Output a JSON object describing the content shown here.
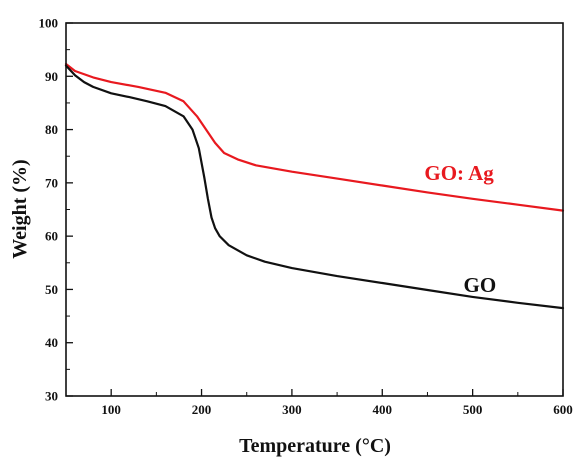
{
  "chart_data": {
    "type": "line",
    "title": "",
    "xlabel": "Temperature (°C)",
    "ylabel": "Weight (%)",
    "xlim": [
      50,
      600
    ],
    "ylim": [
      30,
      100
    ],
    "x_ticks": [
      100,
      200,
      300,
      400,
      500,
      600
    ],
    "y_ticks": [
      30,
      40,
      50,
      60,
      70,
      80,
      90,
      100
    ],
    "x_tick_labels": [
      "100",
      "200",
      "300",
      "400",
      "500",
      "600"
    ],
    "y_tick_labels": [
      "30",
      "40",
      "50",
      "60",
      "70",
      "80",
      "90",
      "100"
    ],
    "grid": false,
    "legend": "none (series labels drawn inside plot, near right side)",
    "series": [
      {
        "name": "GO: Ag",
        "color": "#e8191f",
        "label_anchor": [
          485,
          70.5
        ],
        "x": [
          50,
          60,
          80,
          100,
          130,
          160,
          180,
          195,
          205,
          215,
          225,
          240,
          260,
          300,
          350,
          400,
          450,
          500,
          550,
          600
        ],
        "y": [
          92.3,
          91.0,
          89.8,
          88.9,
          88.0,
          86.9,
          85.3,
          82.5,
          80.0,
          77.5,
          75.6,
          74.4,
          73.3,
          72.1,
          70.8,
          69.5,
          68.2,
          67.0,
          65.9,
          64.8
        ]
      },
      {
        "name": "GO",
        "color": "#111111",
        "label_anchor": [
          508,
          49.5
        ],
        "x": [
          50,
          60,
          70,
          80,
          100,
          120,
          140,
          160,
          180,
          190,
          197,
          203,
          207,
          211,
          215,
          220,
          230,
          250,
          270,
          300,
          350,
          400,
          450,
          500,
          550,
          600
        ],
        "y": [
          92.0,
          90.2,
          88.9,
          88.0,
          86.8,
          86.1,
          85.3,
          84.4,
          82.5,
          80.0,
          76.5,
          71.0,
          67.0,
          63.5,
          61.5,
          60.0,
          58.3,
          56.4,
          55.2,
          54.0,
          52.5,
          51.2,
          49.9,
          48.6,
          47.5,
          46.5
        ]
      }
    ]
  }
}
